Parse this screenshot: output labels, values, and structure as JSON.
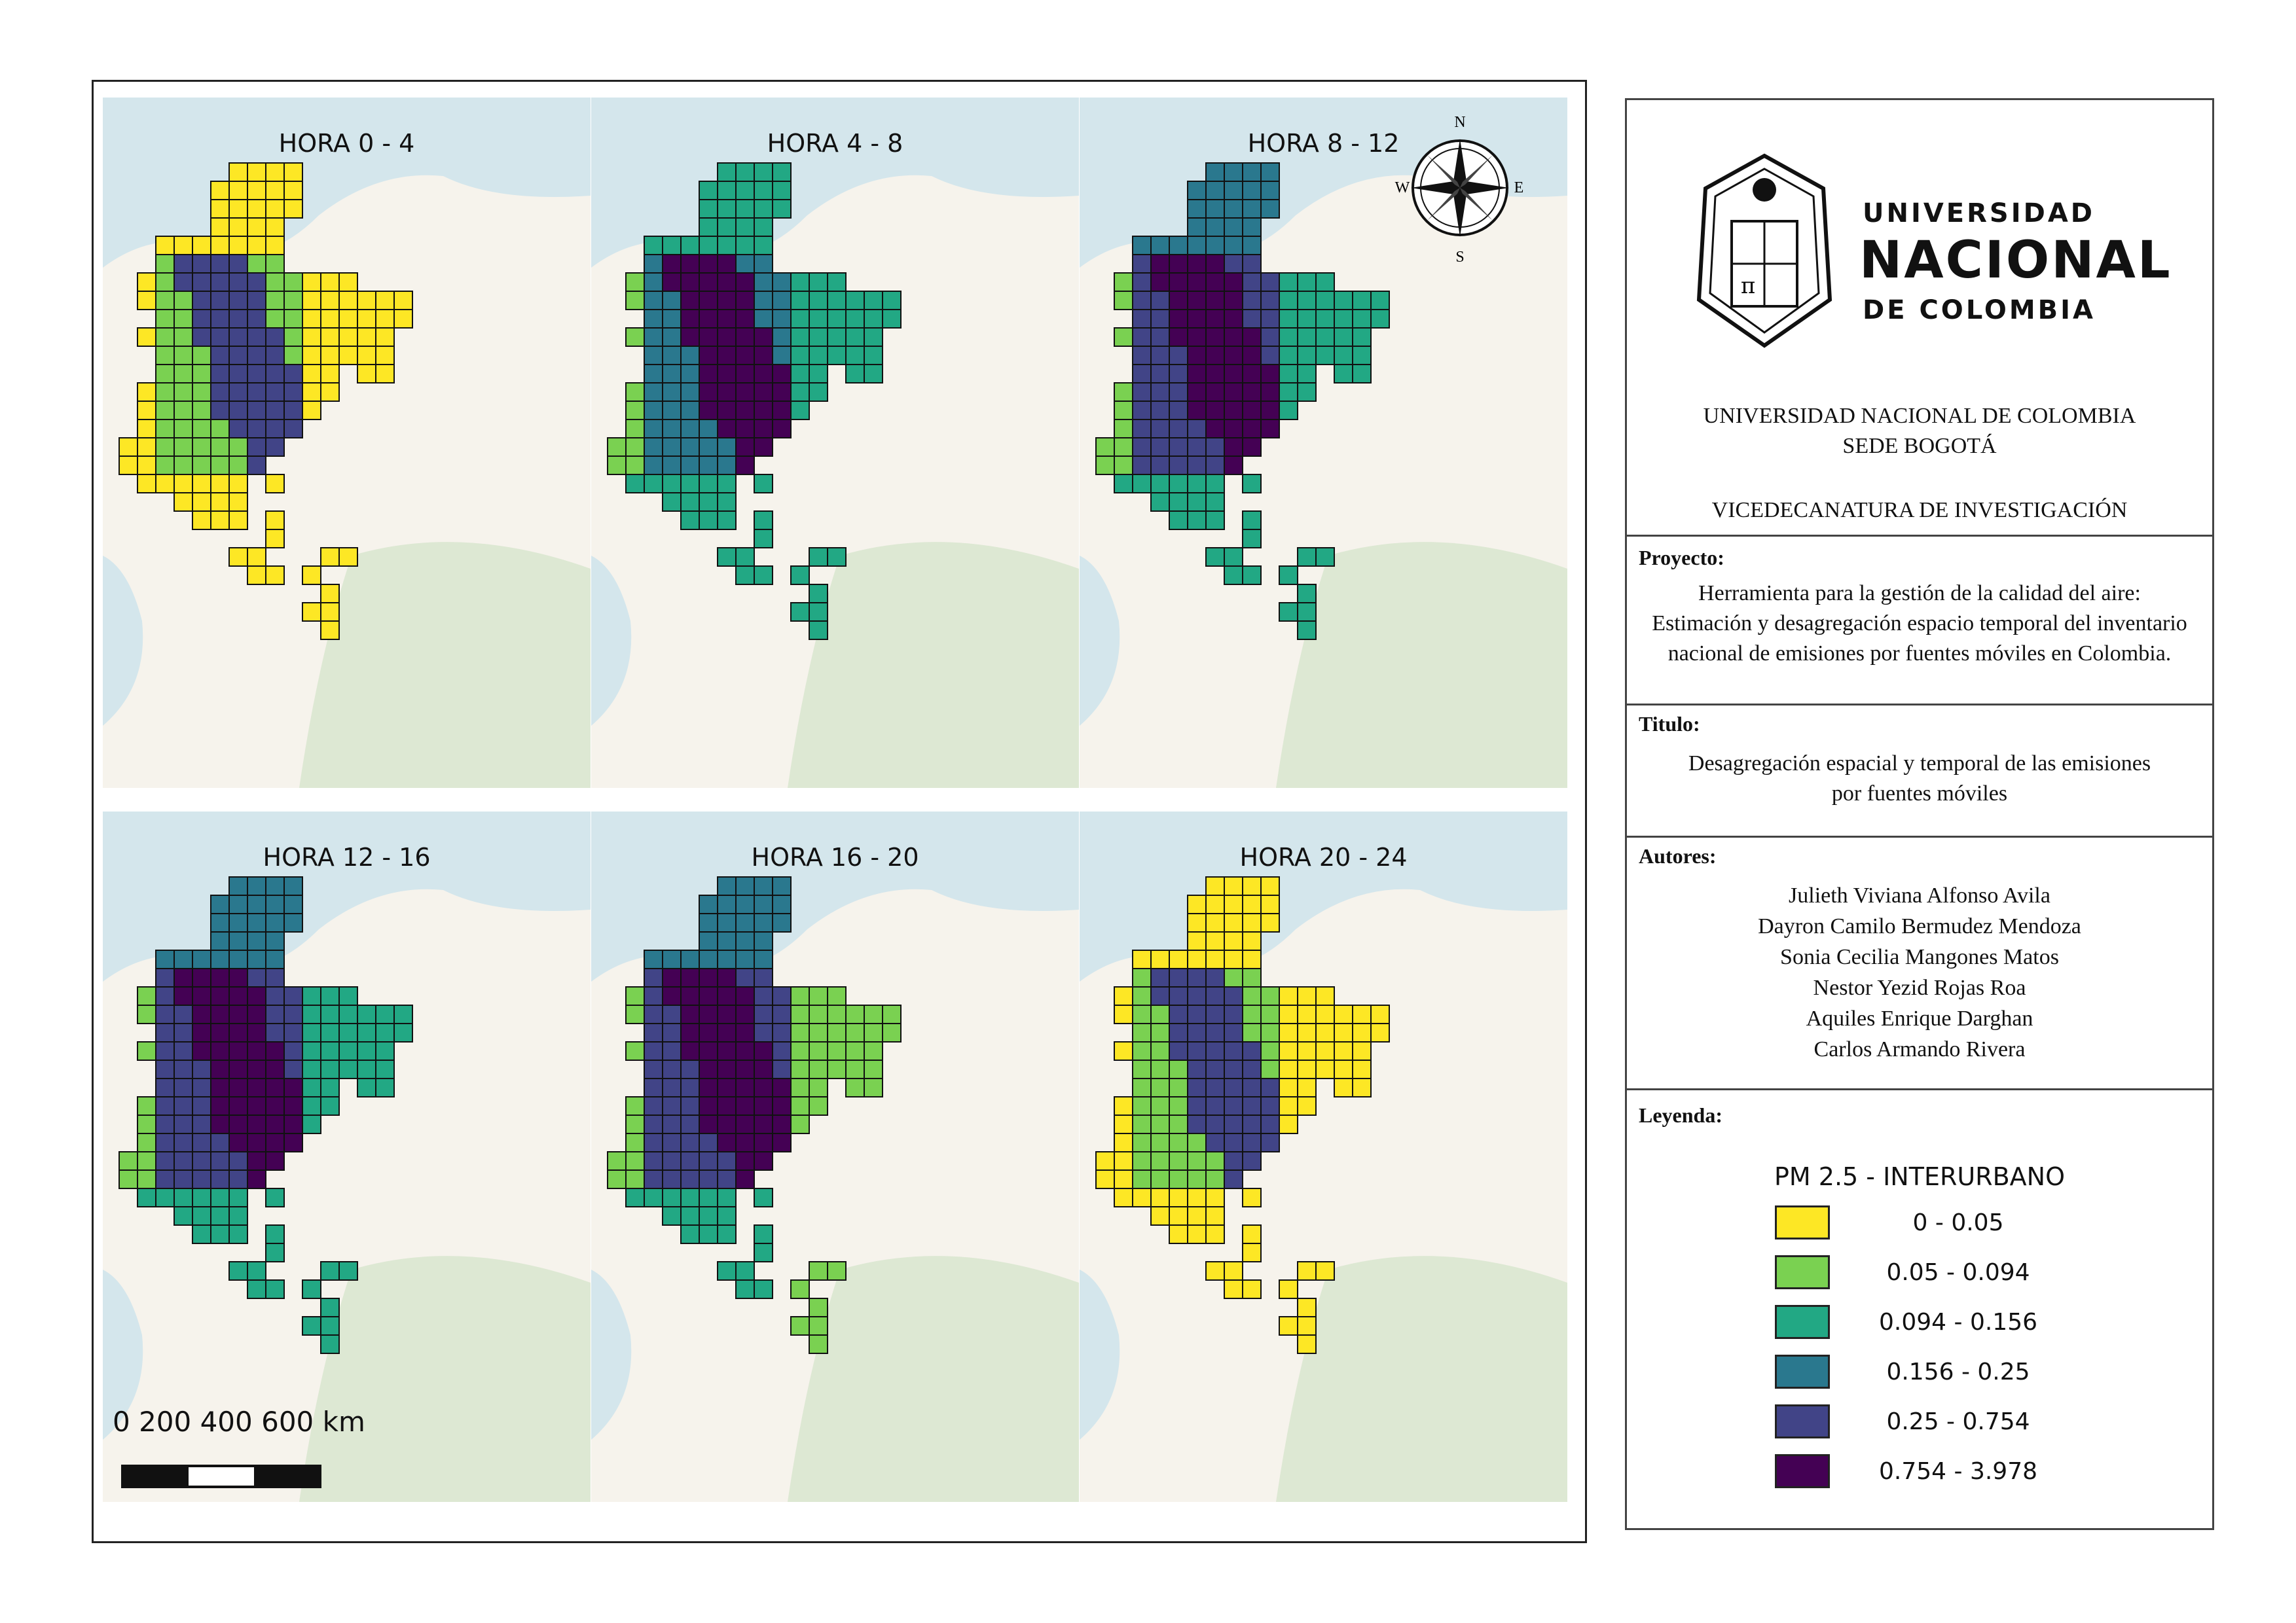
{
  "map_titles": [
    "HORA 0 - 4",
    "HORA 4 - 8",
    "HORA 8 - 12",
    "HORA 12 - 16",
    "HORA 16 - 20",
    "HORA 20 - 24"
  ],
  "compass": {
    "n": "N",
    "s": "S",
    "e": "E",
    "w": "W"
  },
  "scale": {
    "labels": "0   200 400 600 km"
  },
  "university": {
    "line1": "UNIVERSIDAD",
    "line2": "NACIONAL",
    "line3": "DE COLOMBIA"
  },
  "header": {
    "line1": "UNIVERSIDAD NACIONAL DE COLOMBIA",
    "line2": "SEDE BOGOTÁ",
    "line3": "VICEDECANATURA DE INVESTIGACIÓN"
  },
  "project": {
    "label": "Proyecto:",
    "text": "Herramienta para la gestión de la calidad del aire: Estimación y desagregación espacio temporal del inventario nacional de emisiones por fuentes móviles en Colombia."
  },
  "titulo": {
    "label": "Titulo:",
    "text": "Desagregación espacial y temporal de las emisiones por fuentes móviles"
  },
  "autores": {
    "label": "Autores:",
    "names": [
      "Julieth Viviana Alfonso Avila",
      "Dayron Camilo Bermudez Mendoza",
      "Sonia Cecilia Mangones Matos",
      "Nestor Yezid Rojas Roa",
      "Aquiles Enrique Darghan",
      "Carlos Armando Rivera"
    ]
  },
  "legend": {
    "label": "Leyenda:",
    "title": "PM 2.5 - INTERURBANO",
    "classes": [
      {
        "label": "0 - 0.05",
        "color": "#fde725"
      },
      {
        "label": "0.05 - 0.094",
        "color": "#7ad151"
      },
      {
        "label": "0.094 - 0.156",
        "color": "#22a884"
      },
      {
        "label": "0.156 - 0.25",
        "color": "#2a788e"
      },
      {
        "label": "0.25 - 0.754",
        "color": "#414487"
      },
      {
        "label": "0.754 - 3.978",
        "color": "#440154"
      }
    ]
  },
  "colors": {
    "sea": "#d4e6ec",
    "land": "#f6f3ec",
    "forest": "#dde8d3"
  }
}
